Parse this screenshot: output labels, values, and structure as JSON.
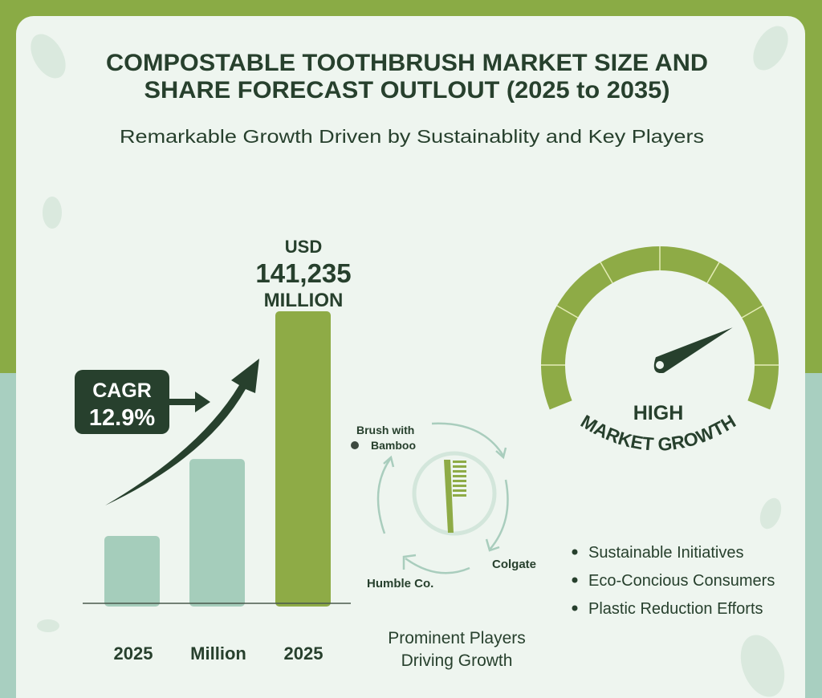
{
  "title": {
    "line1": "COMPOSTABLE TOOTHBRUSH MARKET SIZE AND",
    "line2": "SHARE FORECAST OUTLOUT (2025 to 2035)"
  },
  "subtitle": "Remarkable Growth Driven by Sustainablity and Key Players",
  "callout": {
    "line1": "USD",
    "line2": "141,235",
    "line3": "MILLION"
  },
  "cagr": {
    "label": "CAGR",
    "value": "12.9%"
  },
  "chart_data": {
    "type": "bar",
    "categories": [
      "2025",
      "Million",
      "2025"
    ],
    "values": [
      32600,
      69800,
      141235
    ],
    "colors": [
      "#a5cdbb",
      "#a5cdbb",
      "#8eab46"
    ],
    "title": "",
    "xlabel": "",
    "ylabel": "",
    "ylim": [
      0,
      141235
    ],
    "grid": false
  },
  "players": {
    "items": [
      "Brush with",
      "Bamboo",
      "Colgate",
      "Humble Co."
    ],
    "caption_line1": "Prominent Players",
    "caption_line2": "Driving Growth"
  },
  "gauge": {
    "level_percent": 78,
    "label": "HIGH",
    "arc_label": "MARKET GROWTH",
    "color": "#8eab46",
    "needle_color": "#27402d"
  },
  "drivers": [
    "Sustainable Initiatives",
    "Eco-Concious Consumers",
    "Plastic Reduction Efforts"
  ],
  "colors": {
    "background": "#8aab45",
    "lower_band": "#a8cfc0",
    "card": "#eef5ef",
    "text": "#27402d"
  }
}
